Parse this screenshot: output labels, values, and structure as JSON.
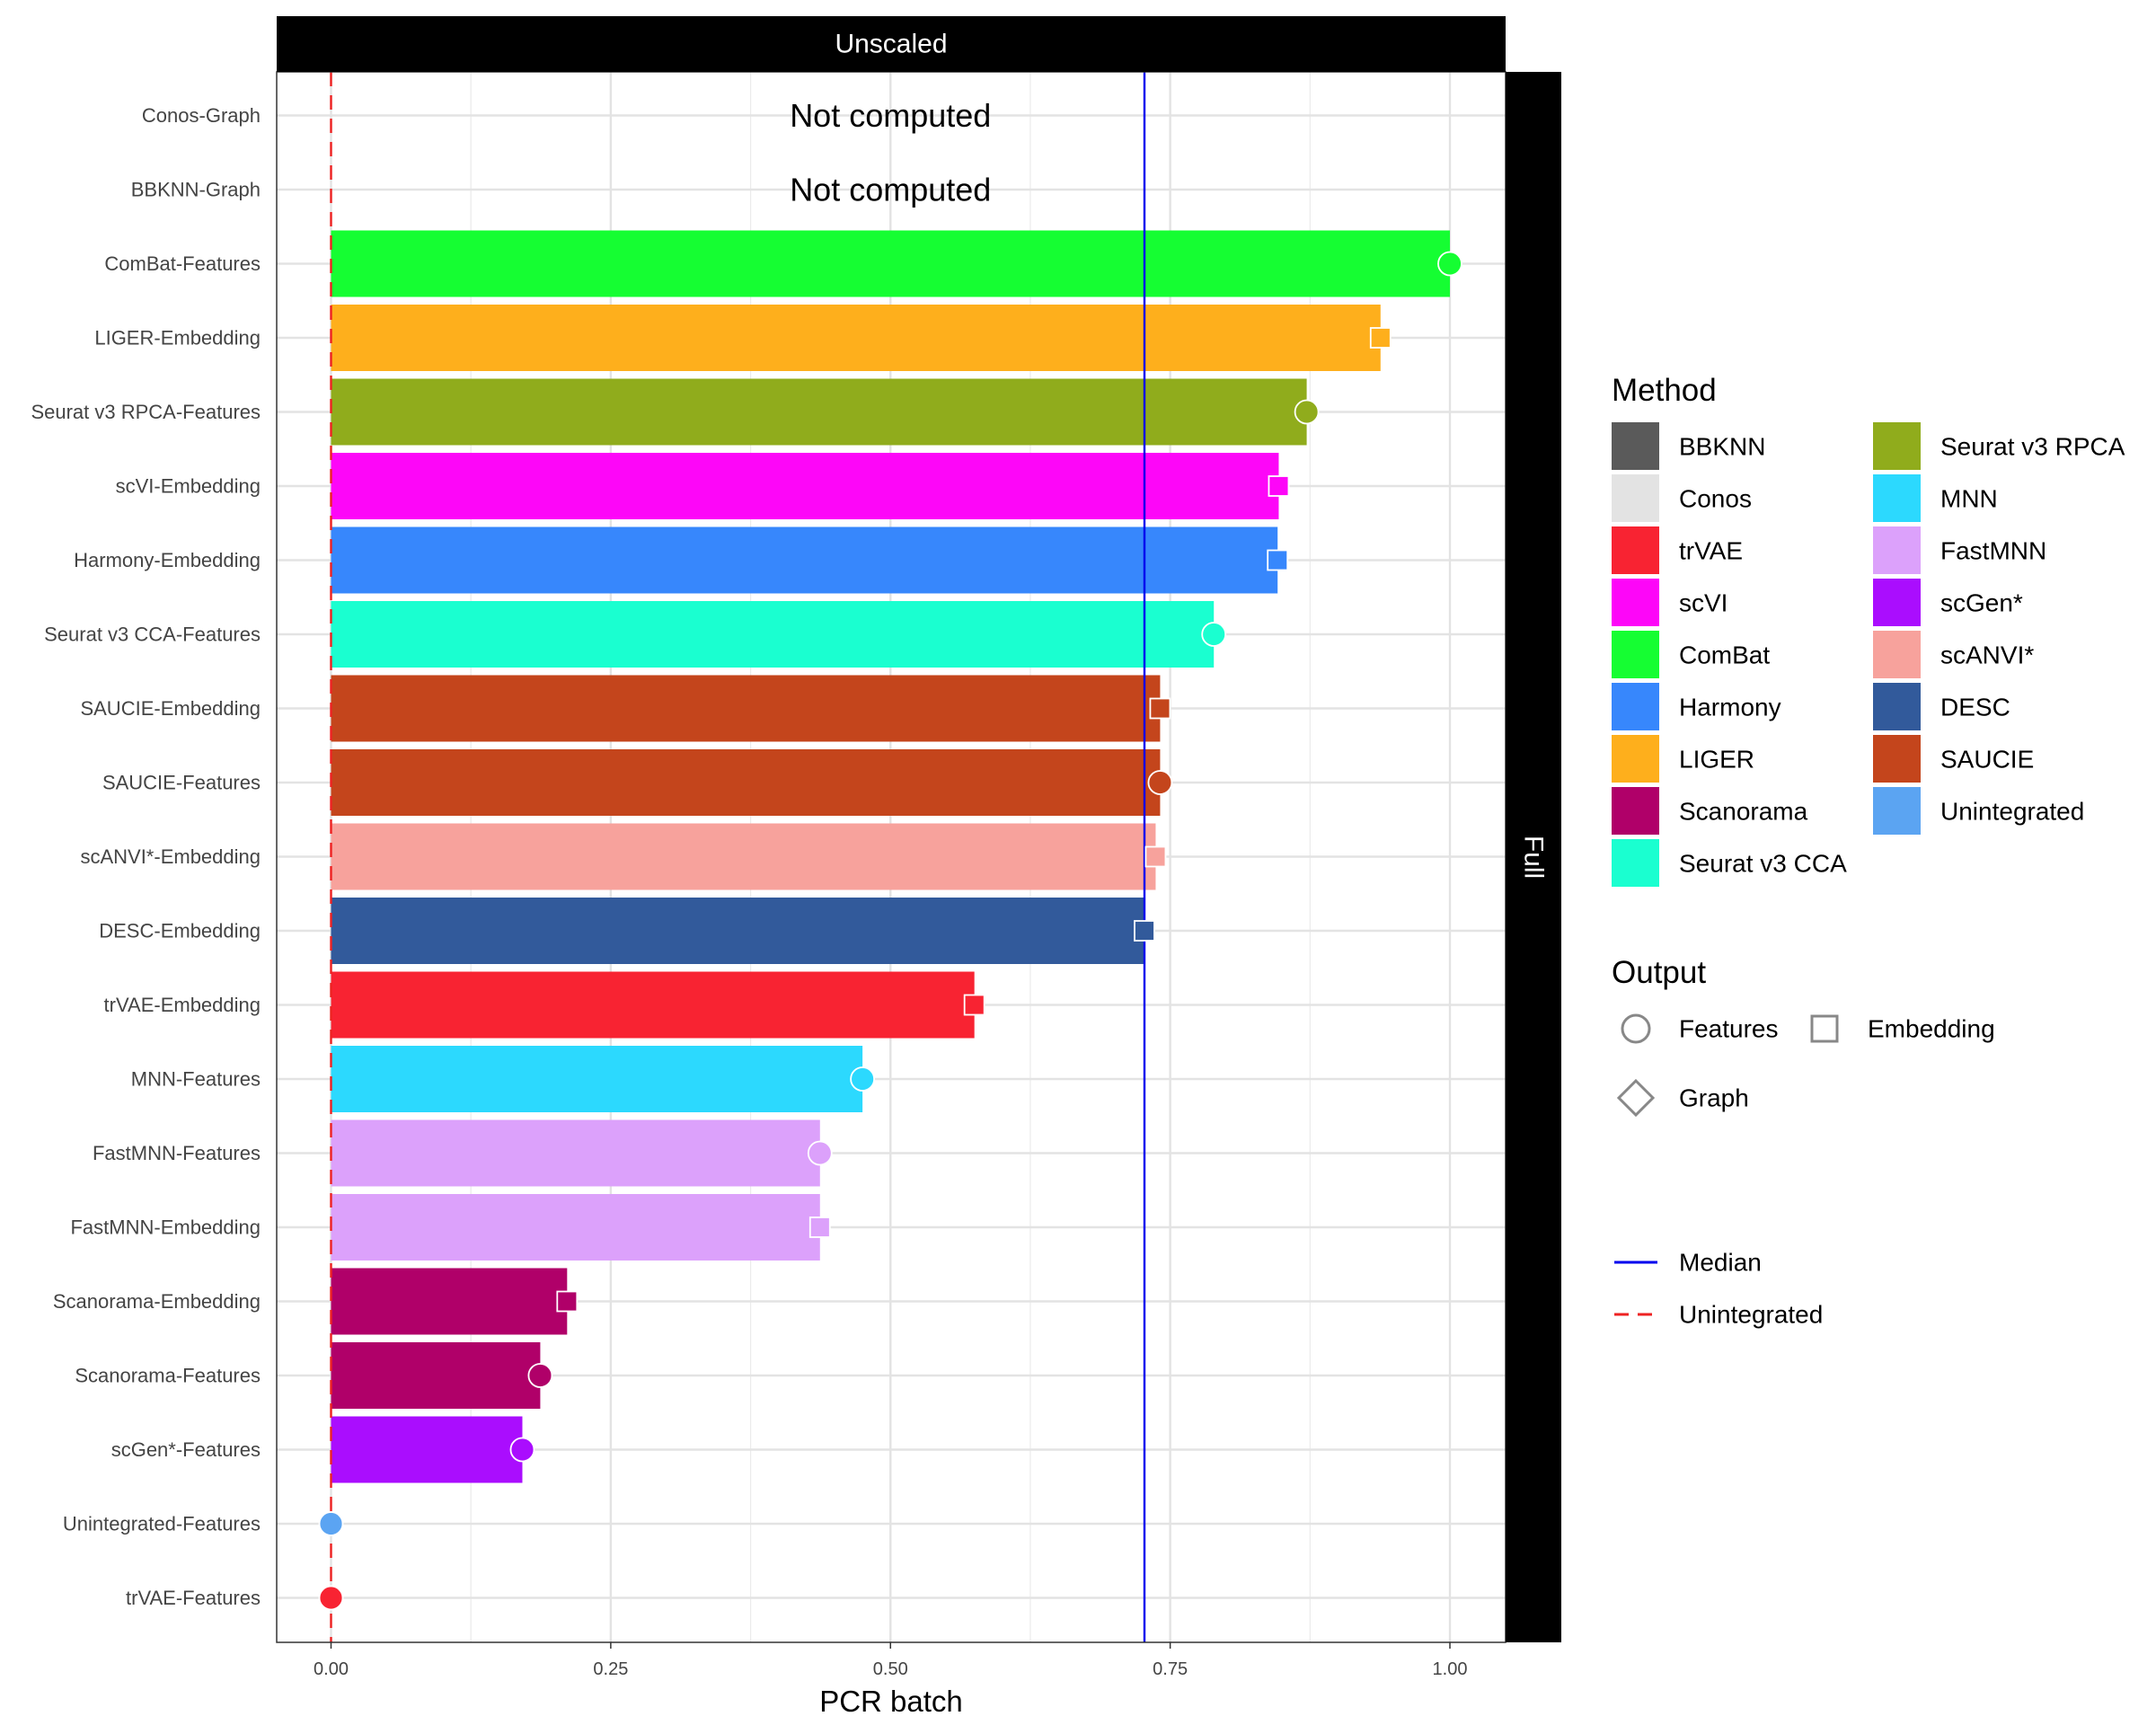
{
  "chart_data": {
    "type": "bar",
    "facet_top": "Unscaled",
    "facet_right": "Full",
    "xlabel": "PCR batch",
    "ylabel": "",
    "xlim": [
      -0.1,
      1.1
    ],
    "x_ticks": [
      "0.00",
      "0.25",
      "0.50",
      "0.75",
      "1.00"
    ],
    "x_tick_values": [
      0,
      0.25,
      0.5,
      0.75,
      1.0
    ],
    "grid": true,
    "median": 0.727,
    "unintegrated": 0.0,
    "not_computed_label": "Not computed",
    "rows": [
      {
        "label": "Conos-Graph",
        "method": "Conos",
        "output": "Graph",
        "value": null
      },
      {
        "label": "BBKNN-Graph",
        "method": "BBKNN",
        "output": "Graph",
        "value": null
      },
      {
        "label": "ComBat-Features",
        "method": "ComBat",
        "output": "Features",
        "value": 1.0
      },
      {
        "label": "LIGER-Embedding",
        "method": "LIGER",
        "output": "Embedding",
        "value": 0.938
      },
      {
        "label": "Seurat v3 RPCA-Features",
        "method": "Seurat v3 RPCA",
        "output": "Features",
        "value": 0.872
      },
      {
        "label": "scVI-Embedding",
        "method": "scVI",
        "output": "Embedding",
        "value": 0.847
      },
      {
        "label": "Harmony-Embedding",
        "method": "Harmony",
        "output": "Embedding",
        "value": 0.846
      },
      {
        "label": "Seurat v3 CCA-Features",
        "method": "Seurat v3 CCA",
        "output": "Features",
        "value": 0.789
      },
      {
        "label": "SAUCIE-Embedding",
        "method": "SAUCIE",
        "output": "Embedding",
        "value": 0.741
      },
      {
        "label": "SAUCIE-Features",
        "method": "SAUCIE",
        "output": "Features",
        "value": 0.741
      },
      {
        "label": "scANVI*-Embedding",
        "method": "scANVI*",
        "output": "Embedding",
        "value": 0.737
      },
      {
        "label": "DESC-Embedding",
        "method": "DESC",
        "output": "Embedding",
        "value": 0.727
      },
      {
        "label": "trVAE-Embedding",
        "method": "trVAE",
        "output": "Embedding",
        "value": 0.575
      },
      {
        "label": "MNN-Features",
        "method": "MNN",
        "output": "Features",
        "value": 0.475
      },
      {
        "label": "FastMNN-Features",
        "method": "FastMNN",
        "output": "Features",
        "value": 0.437
      },
      {
        "label": "FastMNN-Embedding",
        "method": "FastMNN",
        "output": "Embedding",
        "value": 0.437
      },
      {
        "label": "Scanorama-Embedding",
        "method": "Scanorama",
        "output": "Embedding",
        "value": 0.211
      },
      {
        "label": "Scanorama-Features",
        "method": "Scanorama",
        "output": "Features",
        "value": 0.187
      },
      {
        "label": "scGen*-Features",
        "method": "scGen*",
        "output": "Features",
        "value": 0.171
      },
      {
        "label": "Unintegrated-Features",
        "method": "Unintegrated",
        "output": "Features",
        "value": 0.0
      },
      {
        "label": "trVAE-Features",
        "method": "trVAE",
        "output": "Features",
        "value": 0.0
      }
    ],
    "legend": {
      "method_title": "Method",
      "methods": [
        {
          "name": "BBKNN",
          "color": "#5A5A5A"
        },
        {
          "name": "Conos",
          "color": "#E3E3E3"
        },
        {
          "name": "trVAE",
          "color": "#F82332"
        },
        {
          "name": "scVI",
          "color": "#FD06F8"
        },
        {
          "name": "ComBat",
          "color": "#15FE32"
        },
        {
          "name": "Harmony",
          "color": "#3787FC"
        },
        {
          "name": "LIGER",
          "color": "#FEAF1C"
        },
        {
          "name": "Scanorama",
          "color": "#B00069"
        },
        {
          "name": "Seurat v3 CCA",
          "color": "#1AFFD0"
        },
        {
          "name": "Seurat v3 RPCA",
          "color": "#90AC1C"
        },
        {
          "name": "MNN",
          "color": "#2CD9FE"
        },
        {
          "name": "FastMNN",
          "color": "#DCA1FB"
        },
        {
          "name": "scGen*",
          "color": "#AA0DFE"
        },
        {
          "name": "scANVI*",
          "color": "#F7A29C"
        },
        {
          "name": "DESC",
          "color": "#325A9B"
        },
        {
          "name": "SAUCIE",
          "color": "#C4451C"
        },
        {
          "name": "Unintegrated",
          "color": "#5BA4F2"
        }
      ],
      "output_title": "Output",
      "outputs": [
        "Features",
        "Embedding",
        "Graph"
      ],
      "lines": [
        {
          "name": "Median",
          "color": "#0000EE",
          "style": "solid"
        },
        {
          "name": "Unintegrated",
          "color": "#EE2222",
          "style": "dashed"
        }
      ]
    }
  }
}
